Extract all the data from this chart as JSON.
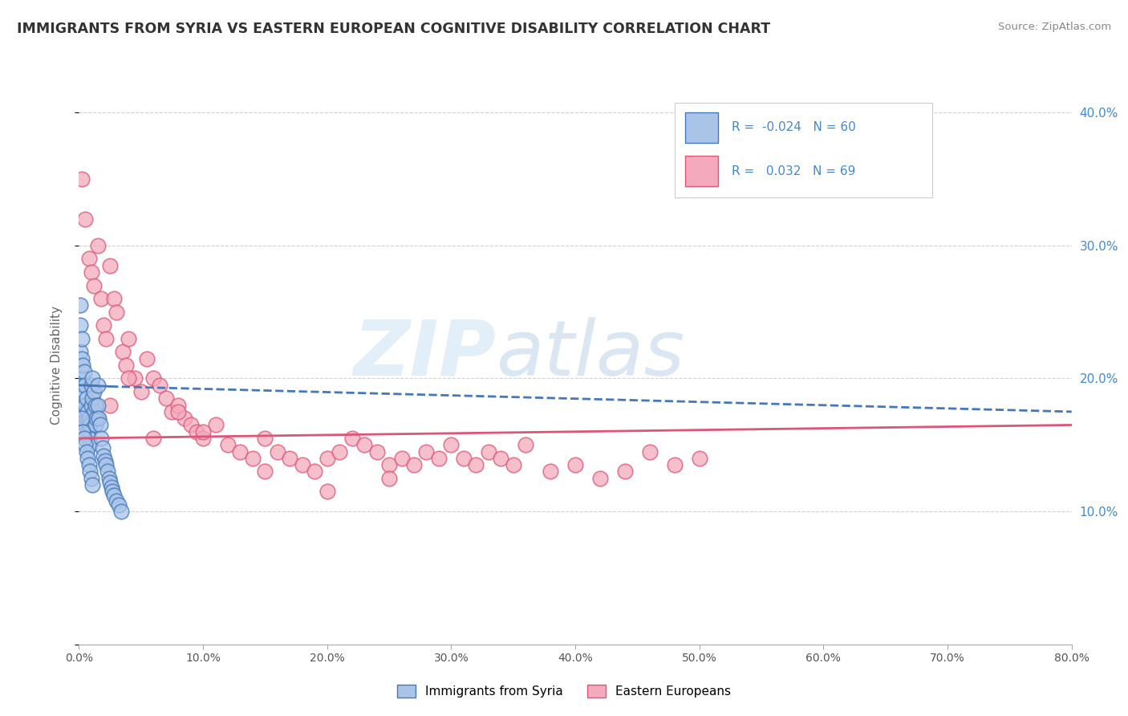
{
  "title": "IMMIGRANTS FROM SYRIA VS EASTERN EUROPEAN COGNITIVE DISABILITY CORRELATION CHART",
  "source": "Source: ZipAtlas.com",
  "ylabel": "Cognitive Disability",
  "watermark_zip": "ZIP",
  "watermark_atlas": "atlas",
  "legend": {
    "syria_R": "-0.024",
    "syria_N": 60,
    "eastern_R": "0.032",
    "eastern_N": 69
  },
  "xlim": [
    0.0,
    0.8
  ],
  "ylim": [
    0.0,
    0.42
  ],
  "yticks": [
    0.0,
    0.1,
    0.2,
    0.3,
    0.4
  ],
  "ytick_labels": [
    "",
    "10.0%",
    "20.0%",
    "30.0%",
    "40.0%"
  ],
  "xticks": [
    0.0,
    0.1,
    0.2,
    0.3,
    0.4,
    0.5,
    0.6,
    0.7,
    0.8
  ],
  "xtick_labels": [
    "0.0%",
    "10.0%",
    "20.0%",
    "30.0%",
    "40.0%",
    "50.0%",
    "60.0%",
    "70.0%",
    "80.0%"
  ],
  "grid_color": "#cccccc",
  "syria_color": "#aac4e8",
  "eastern_color": "#f4aabc",
  "syria_line_color": "#4477bb",
  "eastern_line_color": "#dd5577",
  "right_axis_color": "#4488cc",
  "background": "#ffffff",
  "syria_points_x": [
    0.001,
    0.001,
    0.001,
    0.002,
    0.002,
    0.002,
    0.003,
    0.003,
    0.003,
    0.004,
    0.004,
    0.004,
    0.005,
    0.005,
    0.005,
    0.006,
    0.006,
    0.007,
    0.007,
    0.008,
    0.008,
    0.009,
    0.009,
    0.01,
    0.01,
    0.011,
    0.011,
    0.012,
    0.012,
    0.013,
    0.013,
    0.014,
    0.015,
    0.015,
    0.016,
    0.017,
    0.018,
    0.019,
    0.02,
    0.021,
    0.022,
    0.023,
    0.024,
    0.025,
    0.026,
    0.027,
    0.028,
    0.03,
    0.032,
    0.034,
    0.002,
    0.003,
    0.004,
    0.005,
    0.006,
    0.007,
    0.008,
    0.009,
    0.01,
    0.011
  ],
  "syria_points_y": [
    0.255,
    0.24,
    0.22,
    0.23,
    0.215,
    0.2,
    0.21,
    0.195,
    0.18,
    0.205,
    0.19,
    0.175,
    0.195,
    0.18,
    0.165,
    0.185,
    0.17,
    0.175,
    0.16,
    0.17,
    0.155,
    0.165,
    0.15,
    0.18,
    0.195,
    0.2,
    0.185,
    0.19,
    0.175,
    0.18,
    0.165,
    0.17,
    0.195,
    0.18,
    0.17,
    0.165,
    0.155,
    0.148,
    0.142,
    0.138,
    0.135,
    0.13,
    0.125,
    0.122,
    0.118,
    0.115,
    0.112,
    0.108,
    0.105,
    0.1,
    0.17,
    0.16,
    0.155,
    0.15,
    0.145,
    0.14,
    0.135,
    0.13,
    0.125,
    0.12
  ],
  "eastern_points_x": [
    0.002,
    0.005,
    0.008,
    0.01,
    0.012,
    0.015,
    0.018,
    0.02,
    0.022,
    0.025,
    0.028,
    0.03,
    0.035,
    0.038,
    0.04,
    0.045,
    0.05,
    0.055,
    0.06,
    0.065,
    0.07,
    0.075,
    0.08,
    0.085,
    0.09,
    0.095,
    0.1,
    0.11,
    0.12,
    0.13,
    0.14,
    0.15,
    0.16,
    0.17,
    0.18,
    0.19,
    0.2,
    0.21,
    0.22,
    0.23,
    0.24,
    0.25,
    0.26,
    0.27,
    0.28,
    0.29,
    0.3,
    0.31,
    0.32,
    0.33,
    0.34,
    0.35,
    0.36,
    0.38,
    0.4,
    0.42,
    0.44,
    0.46,
    0.48,
    0.5,
    0.015,
    0.025,
    0.04,
    0.06,
    0.08,
    0.1,
    0.15,
    0.2,
    0.25
  ],
  "eastern_points_y": [
    0.35,
    0.32,
    0.29,
    0.28,
    0.27,
    0.3,
    0.26,
    0.24,
    0.23,
    0.285,
    0.26,
    0.25,
    0.22,
    0.21,
    0.23,
    0.2,
    0.19,
    0.215,
    0.2,
    0.195,
    0.185,
    0.175,
    0.18,
    0.17,
    0.165,
    0.16,
    0.155,
    0.165,
    0.15,
    0.145,
    0.14,
    0.155,
    0.145,
    0.14,
    0.135,
    0.13,
    0.14,
    0.145,
    0.155,
    0.15,
    0.145,
    0.135,
    0.14,
    0.135,
    0.145,
    0.14,
    0.15,
    0.14,
    0.135,
    0.145,
    0.14,
    0.135,
    0.15,
    0.13,
    0.135,
    0.125,
    0.13,
    0.145,
    0.135,
    0.14,
    0.17,
    0.18,
    0.2,
    0.155,
    0.175,
    0.16,
    0.13,
    0.115,
    0.125
  ]
}
